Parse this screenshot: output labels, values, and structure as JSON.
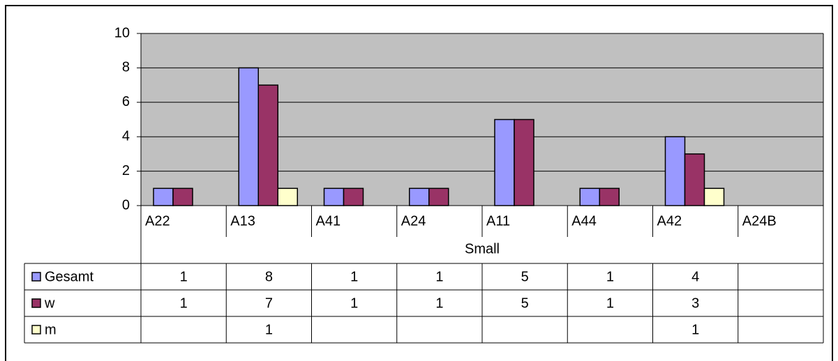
{
  "chart_data": {
    "type": "bar",
    "group_label": "Small",
    "categories": [
      "A22",
      "A13",
      "A41",
      "A24",
      "A11",
      "A44",
      "A42",
      "A24B"
    ],
    "series": [
      {
        "name": "Gesamt",
        "color": "#9999ff",
        "values": [
          1,
          8,
          1,
          1,
          5,
          1,
          4,
          null
        ]
      },
      {
        "name": "w",
        "color": "#993366",
        "values": [
          1,
          7,
          1,
          1,
          5,
          1,
          3,
          null
        ]
      },
      {
        "name": "m",
        "color": "#ffffcc",
        "values": [
          null,
          1,
          null,
          null,
          null,
          null,
          1,
          null
        ]
      }
    ],
    "ylim": [
      0,
      10
    ],
    "yticks": [
      0,
      2,
      4,
      6,
      8,
      10
    ],
    "grid": true,
    "plot_background": "#c0c0c0"
  }
}
